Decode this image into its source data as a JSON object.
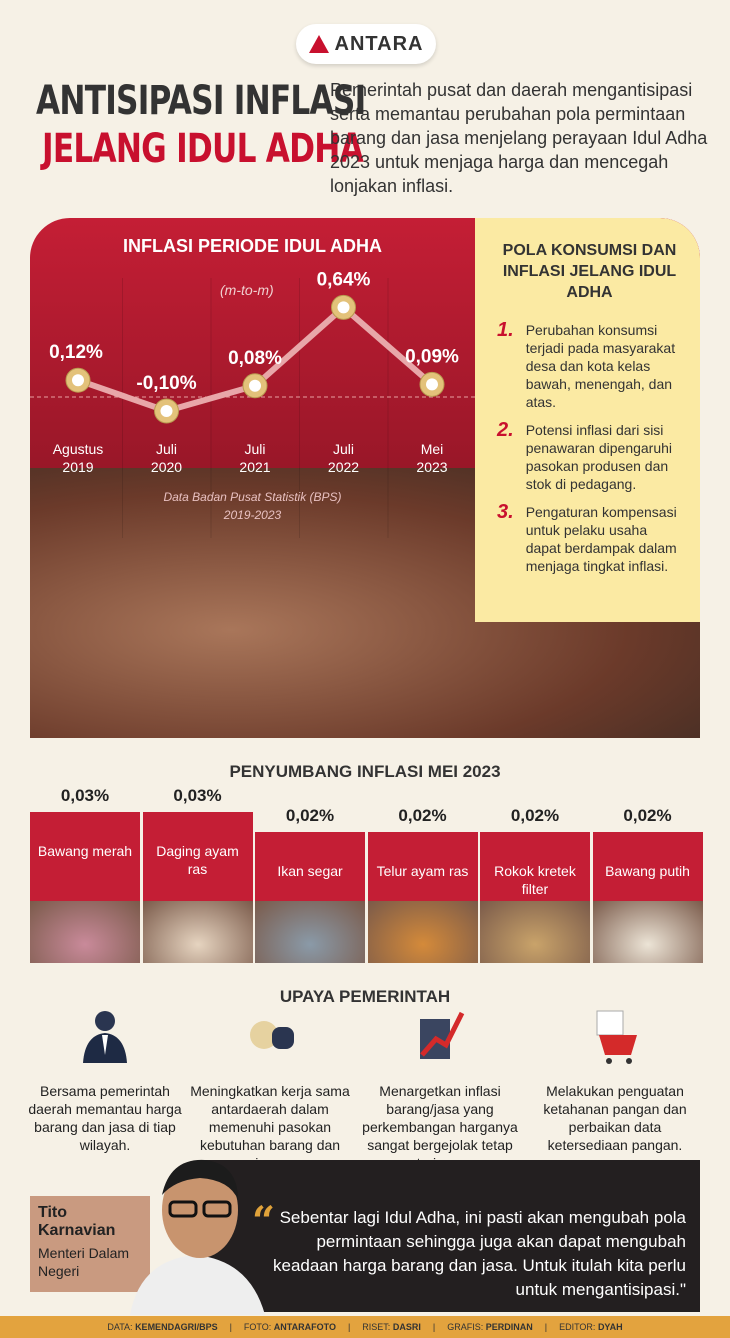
{
  "logo": "ANTARA",
  "title": {
    "line1": "ANTISIPASI INFLASI",
    "line2": "JELANG IDUL ADHA"
  },
  "intro": "Pemerintah pusat dan daerah mengantisipasi serta memantau perubahan pola permintaan barang dan jasa menjelang perayaan Idul Adha 2023 untuk menjaga harga dan mencegah lonjakan inflasi.",
  "chart_data": {
    "type": "line",
    "title": "INFLASI PERIODE IDUL ADHA",
    "subtitle": "(m-to-m)",
    "categories": [
      "Agustus 2019",
      "Juli 2020",
      "Juli 2021",
      "Juli 2022",
      "Mei 2023"
    ],
    "category_lines": [
      [
        "Agustus",
        "2019"
      ],
      [
        "Juli",
        "2020"
      ],
      [
        "Juli",
        "2021"
      ],
      [
        "Juli",
        "2022"
      ],
      [
        "Mei",
        "2023"
      ]
    ],
    "values": [
      0.12,
      -0.1,
      0.08,
      0.64,
      0.09
    ],
    "labels": [
      "0,12%",
      "-0,10%",
      "0,08%",
      "0,64%",
      "0,09%"
    ],
    "source": [
      "Data Badan Pusat Statistik (BPS)",
      "2019-2023"
    ],
    "baseline": 0,
    "colors": {
      "line": "#e8a7a9",
      "marker": "#e3c27a"
    }
  },
  "pola": {
    "title": "POLA KONSUMSI DAN INFLASI JELANG IDUL ADHA",
    "items": [
      {
        "n": "1.",
        "text": "Perubahan konsumsi terjadi pada masyarakat desa dan kota kelas bawah, menengah, dan atas."
      },
      {
        "n": "2.",
        "text": "Potensi inflasi dari sisi penawaran dipengaruhi pasokan produsen dan stok di pedagang."
      },
      {
        "n": "3.",
        "text": "Pengaturan kompensasi untuk pelaku usaha dapat berdampak dalam menjaga tingkat inflasi."
      }
    ]
  },
  "contrib": {
    "title": "PENYUMBANG INFLASI MEI 2023",
    "items": [
      {
        "value": "0,03%",
        "label": "Bawang merah"
      },
      {
        "value": "0,03%",
        "label": "Daging ayam ras"
      },
      {
        "value": "0,02%",
        "label": "Ikan segar"
      },
      {
        "value": "0,02%",
        "label": "Telur ayam ras"
      },
      {
        "value": "0,02%",
        "label": "Rokok kretek filter"
      },
      {
        "value": "0,02%",
        "label": "Bawang putih"
      }
    ]
  },
  "upaya": {
    "title": "UPAYA PEMERINTAH",
    "items": [
      {
        "icon": "official-icon",
        "text": "Bersama pemerintah daerah memantau harga barang dan jasa di tiap wilayah."
      },
      {
        "icon": "handshake-icon",
        "text": "Meningkatkan kerja sama antardaerah dalam memenuhi pasokan kebutuhan barang dan jasa."
      },
      {
        "icon": "rising-chart-icon",
        "text": "Menargetkan inflasi barang/jasa yang perkembangan harganya sangat bergejolak tetap terjaga."
      },
      {
        "icon": "shopping-cart-icon",
        "text": "Melakukan penguatan ketahanan pangan dan perbaikan data ketersediaan pangan."
      }
    ]
  },
  "quote": {
    "name": "Tito Karnavian",
    "role": "Menteri Dalam Negeri",
    "mark": "“",
    "text": "Sebentar lagi Idul Adha, ini pasti akan mengubah pola permintaan sehingga juga akan dapat mengubah keadaan harga barang dan jasa. Untuk itulah kita perlu untuk  mengantisipasi.\""
  },
  "footer": [
    {
      "k": "DATA:",
      "v": "KEMENDAGRI/BPS"
    },
    {
      "k": "FOTO:",
      "v": "ANTARAFOTO"
    },
    {
      "k": "RISET:",
      "v": "DASRI"
    },
    {
      "k": "GRAFIS:",
      "v": "PERDINAN"
    },
    {
      "k": "EDITOR:",
      "v": "DYAH"
    }
  ]
}
